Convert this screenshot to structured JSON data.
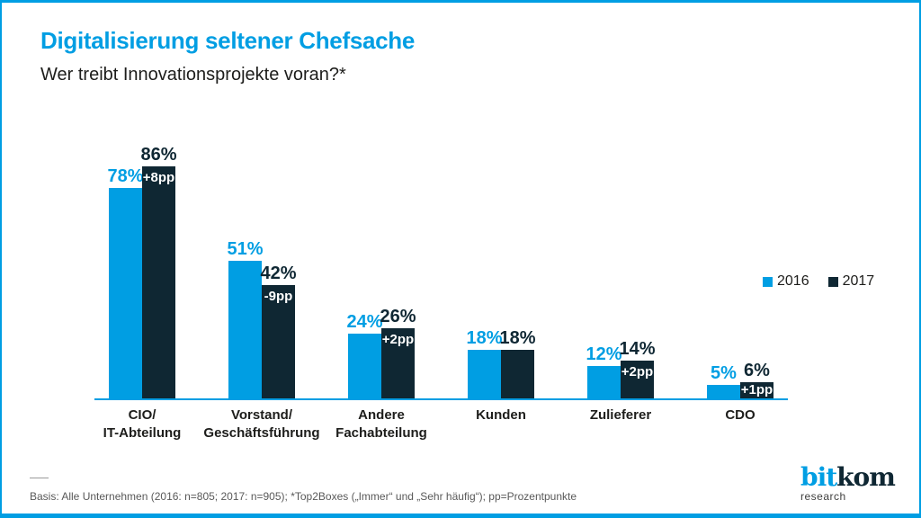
{
  "colors": {
    "accent_blue": "#009ee3",
    "dark_navy": "#0f2733",
    "footer_gray": "#595959"
  },
  "chart_data": {
    "type": "bar",
    "title": "Digitalisierung seltener Chefsache",
    "subtitle": "Wer treibt Innovationsprojekte voran?*",
    "unit": "%",
    "categories": [
      [
        "CIO/",
        "IT-Abteilung"
      ],
      [
        "Vorstand/",
        "Geschäftsführung"
      ],
      [
        "Andere",
        "Fachabteilung"
      ],
      [
        "Kunden"
      ],
      [
        "Zulieferer"
      ],
      [
        "CDO"
      ]
    ],
    "series": [
      {
        "name": "2016",
        "color": "#009ee3",
        "values": [
          78,
          51,
          24,
          18,
          12,
          5
        ]
      },
      {
        "name": "2017",
        "color": "#0f2733",
        "values": [
          86,
          42,
          26,
          18,
          14,
          6
        ]
      }
    ],
    "diff_labels": [
      "+8pp",
      "-9pp",
      "+2pp",
      null,
      "+2pp",
      "+1pp"
    ],
    "value_axis": {
      "visible": false,
      "min": 0,
      "max": 100
    },
    "grid": false,
    "legend_position": "right"
  },
  "footer": {
    "basis": "Basis: Alle Unternehmen (2016: n=805; 2017: n=905); *Top2Boxes („Immer“ und „Sehr häufig“); pp=Prozentpunkte"
  },
  "logo": {
    "part1": "bit",
    "part2": "kom",
    "sub": "research"
  }
}
